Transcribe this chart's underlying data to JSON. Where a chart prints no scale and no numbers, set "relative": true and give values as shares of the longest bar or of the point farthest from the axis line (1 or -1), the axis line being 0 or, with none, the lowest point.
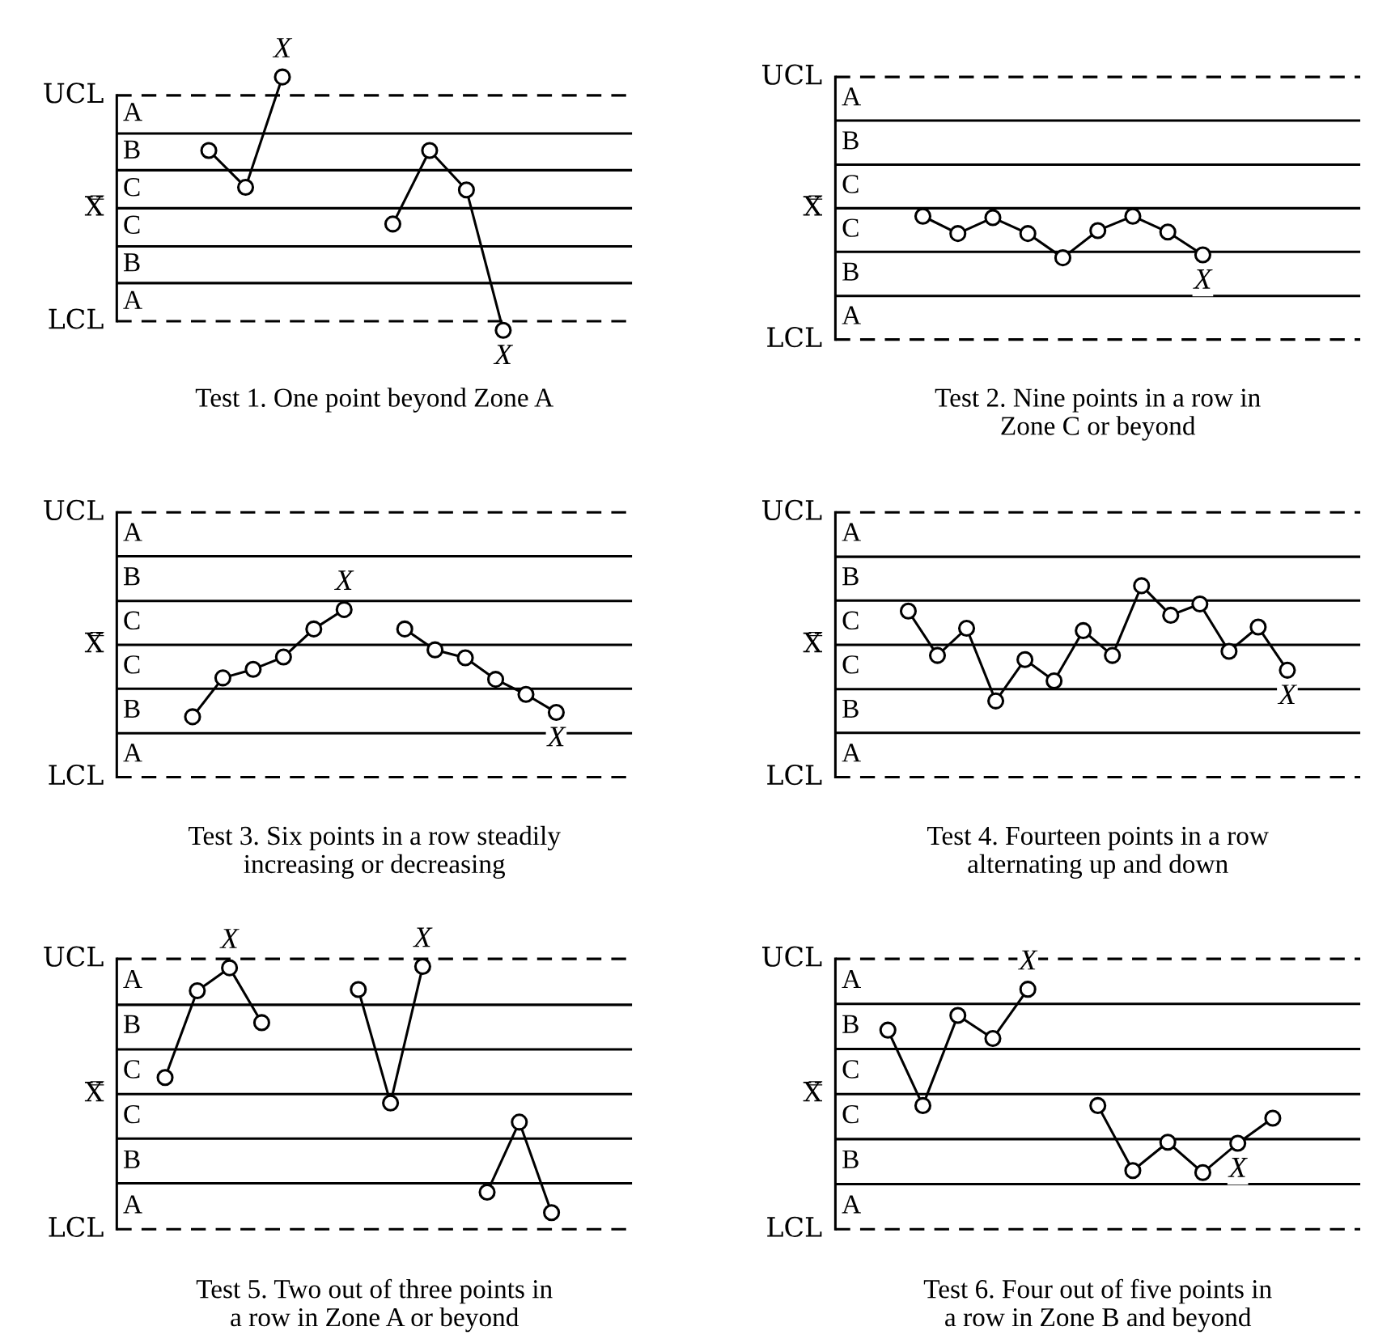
{
  "chart_data": [
    {
      "type": "line",
      "relative": true,
      "title": "Test 1. One point beyond Zone A",
      "categories": [
        null,
        null,
        null,
        null,
        null,
        null,
        null,
        null,
        null,
        null,
        null,
        null,
        null,
        null
      ],
      "marker": "circle",
      "series": [
        {
          "color": "#000000",
          "values": [
            null,
            null,
            0.44,
            0.16,
            1,
            null,
            null,
            null,
            null,
            null,
            null,
            null,
            null,
            null
          ]
        },
        {
          "color": "#000000",
          "values": [
            null,
            null,
            null,
            null,
            null,
            null,
            null,
            -0.12,
            0.44,
            0.14,
            -0.93,
            null,
            null,
            null
          ]
        }
      ],
      "ref_lines": [
        {
          "axis": "y",
          "value": 0.86,
          "label": "UCL",
          "line_style": "dashed"
        },
        {
          "axis": "y",
          "value": 0.57
        },
        {
          "axis": "y",
          "value": 0.29
        },
        {
          "axis": "y",
          "value": 0,
          "label": "X̿"
        },
        {
          "axis": "y",
          "value": -0.29
        },
        {
          "axis": "y",
          "value": -0.57
        },
        {
          "axis": "y",
          "value": -0.86,
          "label": "LCL",
          "line_style": "dashed"
        }
      ],
      "annotations": [
        "A",
        "B",
        "C",
        "C",
        "B",
        "A",
        {
          "text": "X",
          "y": 1
        },
        {
          "text": "X",
          "y": -0.93
        }
      ]
    },
    {
      "type": "line",
      "relative": true,
      "title": "Test 2. Nine points in a row in\nZone C or beyond",
      "categories": [
        null,
        null,
        null,
        null,
        null,
        null,
        null,
        null,
        null,
        null,
        null,
        null,
        null,
        null,
        null
      ],
      "marker": "circle",
      "series": [
        {
          "color": "#000000",
          "values": [
            null,
            null,
            -0.16,
            -0.51,
            -0.19,
            -0.51,
            -1,
            -0.45,
            -0.16,
            -0.48,
            -0.94,
            null,
            null,
            null,
            null
          ]
        }
      ],
      "ref_lines": [
        {
          "axis": "y",
          "value": 2.65,
          "label": "UCL",
          "line_style": "dashed"
        },
        {
          "axis": "y",
          "value": 1.77
        },
        {
          "axis": "y",
          "value": 0.88
        },
        {
          "axis": "y",
          "value": 0,
          "label": "X̿"
        },
        {
          "axis": "y",
          "value": -0.88
        },
        {
          "axis": "y",
          "value": -1.77
        },
        {
          "axis": "y",
          "value": -2.65,
          "label": "LCL",
          "line_style": "dashed"
        }
      ],
      "annotations": [
        "A",
        "B",
        "C",
        "C",
        "B",
        "A",
        {
          "text": "X",
          "y": -0.94
        }
      ]
    },
    {
      "type": "line",
      "relative": true,
      "title": "Test 3. Six points in a row steadily\nincreasing or decreasing",
      "categories": [
        null,
        null,
        null,
        null,
        null,
        null,
        null,
        null,
        null,
        null,
        null,
        null,
        null,
        null,
        null,
        null,
        null
      ],
      "marker": "circle",
      "series": [
        {
          "color": "#000000",
          "values": [
            null,
            null,
            -1,
            -0.46,
            -0.34,
            -0.17,
            0.22,
            0.49,
            null,
            null,
            null,
            null,
            null,
            null,
            null,
            null,
            null
          ]
        },
        {
          "color": "#000000",
          "values": [
            null,
            null,
            null,
            null,
            null,
            null,
            null,
            null,
            null,
            0.22,
            -0.07,
            -0.18,
            -0.48,
            -0.69,
            -0.94,
            null,
            null
          ]
        }
      ],
      "ref_lines": [
        {
          "axis": "y",
          "value": 1.84,
          "label": "UCL",
          "line_style": "dashed"
        },
        {
          "axis": "y",
          "value": 1.23
        },
        {
          "axis": "y",
          "value": 0.61
        },
        {
          "axis": "y",
          "value": 0,
          "label": "X̿"
        },
        {
          "axis": "y",
          "value": -0.61
        },
        {
          "axis": "y",
          "value": -1.23
        },
        {
          "axis": "y",
          "value": -1.84,
          "label": "LCL",
          "line_style": "dashed"
        }
      ],
      "annotations": [
        "A",
        "B",
        "C",
        "C",
        "B",
        "A",
        {
          "text": "X",
          "y": 0.49
        },
        {
          "text": "X",
          "y": -0.94
        }
      ]
    },
    {
      "type": "line",
      "relative": true,
      "title": "Test 4. Fourteen points in a row\nalternating up and down",
      "categories": [
        null,
        null,
        null,
        null,
        null,
        null,
        null,
        null,
        null,
        null,
        null,
        null,
        null,
        null,
        null,
        null,
        null,
        null
      ],
      "marker": "circle",
      "series": [
        {
          "color": "#000000",
          "values": [
            null,
            null,
            0.57,
            -0.18,
            0.28,
            -0.95,
            -0.25,
            -0.61,
            0.24,
            -0.18,
            1,
            0.5,
            0.69,
            -0.11,
            0.3,
            -0.43,
            null,
            null
          ]
        }
      ],
      "ref_lines": [
        {
          "axis": "y",
          "value": 2.24,
          "label": "UCL",
          "line_style": "dashed"
        },
        {
          "axis": "y",
          "value": 1.49
        },
        {
          "axis": "y",
          "value": 0.75
        },
        {
          "axis": "y",
          "value": 0,
          "label": "X̿"
        },
        {
          "axis": "y",
          "value": -0.75
        },
        {
          "axis": "y",
          "value": -1.49
        },
        {
          "axis": "y",
          "value": -2.24,
          "label": "LCL",
          "line_style": "dashed"
        }
      ],
      "annotations": [
        "A",
        "B",
        "C",
        "C",
        "B",
        "A",
        {
          "text": "X",
          "y": -0.43
        }
      ]
    },
    {
      "type": "line",
      "relative": true,
      "title": "Test 5. Two out of three points in\na row in Zone A or beyond",
      "categories": [
        null,
        null,
        null,
        null,
        null,
        null,
        null,
        null,
        null,
        null,
        null,
        null,
        null,
        null,
        null,
        null
      ],
      "marker": "circle",
      "series": [
        {
          "color": "#000000",
          "values": [
            null,
            0.13,
            0.81,
            0.99,
            0.56,
            null,
            null,
            null,
            null,
            null,
            null,
            null,
            null,
            null,
            null,
            null
          ]
        },
        {
          "color": "#000000",
          "values": [
            null,
            null,
            null,
            null,
            null,
            null,
            null,
            0.82,
            -0.07,
            1,
            null,
            null,
            null,
            null,
            null,
            null
          ]
        },
        {
          "color": "#000000",
          "values": [
            null,
            null,
            null,
            null,
            null,
            null,
            null,
            null,
            null,
            null,
            null,
            -0.77,
            -0.22,
            -0.93,
            null,
            null
          ]
        }
      ],
      "ref_lines": [
        {
          "axis": "y",
          "value": 1.06,
          "label": "UCL",
          "line_style": "dashed"
        },
        {
          "axis": "y",
          "value": 0.7
        },
        {
          "axis": "y",
          "value": 0.35
        },
        {
          "axis": "y",
          "value": 0,
          "label": "X̿"
        },
        {
          "axis": "y",
          "value": -0.35
        },
        {
          "axis": "y",
          "value": -0.7
        },
        {
          "axis": "y",
          "value": -1.06,
          "label": "LCL",
          "line_style": "dashed"
        }
      ],
      "annotations": [
        "A",
        "B",
        "C",
        "C",
        "B",
        "A",
        {
          "text": "X",
          "y": 0.99
        },
        {
          "text": "X",
          "y": 1
        }
      ]
    },
    {
      "type": "line",
      "relative": true,
      "title": "Test 6. Four out of five points in\na row in Zone B and beyond",
      "categories": [
        null,
        null,
        null,
        null,
        null,
        null,
        null,
        null,
        null,
        null,
        null,
        null,
        null,
        null,
        null
      ],
      "marker": "circle",
      "series": [
        {
          "color": "#000000",
          "values": [
            null,
            0.61,
            -0.11,
            0.75,
            0.53,
            1,
            null,
            null,
            null,
            null,
            null,
            null,
            null,
            null,
            null
          ]
        },
        {
          "color": "#000000",
          "values": [
            null,
            null,
            null,
            null,
            null,
            null,
            null,
            -0.11,
            -0.73,
            -0.46,
            -0.75,
            -0.47,
            -0.23,
            null,
            null
          ]
        }
      ],
      "ref_lines": [
        {
          "axis": "y",
          "value": 1.29,
          "label": "UCL",
          "line_style": "dashed"
        },
        {
          "axis": "y",
          "value": 0.86
        },
        {
          "axis": "y",
          "value": 0.43
        },
        {
          "axis": "y",
          "value": 0,
          "label": "X̿"
        },
        {
          "axis": "y",
          "value": -0.43
        },
        {
          "axis": "y",
          "value": -0.86
        },
        {
          "axis": "y",
          "value": -1.29,
          "label": "LCL",
          "line_style": "dashed"
        }
      ],
      "annotations": [
        "A",
        "B",
        "C",
        "C",
        "B",
        "A",
        {
          "text": "X",
          "y": 1
        },
        {
          "text": "X",
          "y": -0.47
        }
      ]
    }
  ]
}
